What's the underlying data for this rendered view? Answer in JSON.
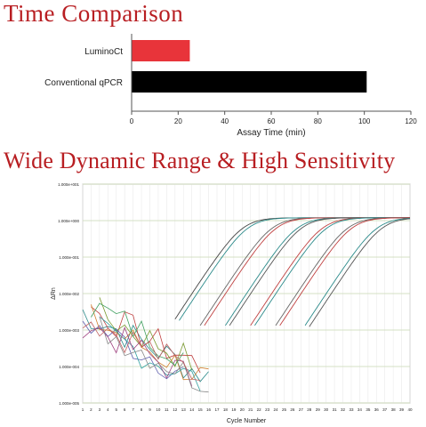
{
  "headings": {
    "time_comparison": "Time Comparison",
    "dynamic_range": "Wide Dynamic Range & High Sensitivity"
  },
  "colors": {
    "heading": "#b81e22",
    "luminoct_bar": "#e8343a",
    "qpcr_bar": "#000000"
  },
  "chart_data": [
    {
      "type": "bar",
      "orientation": "horizontal",
      "categories": [
        "LuminoCt",
        "Conventional qPCR"
      ],
      "values": [
        25,
        101
      ],
      "colors": [
        "#e8343a",
        "#000000"
      ],
      "xlabel": "Assay Time (min)",
      "xlim": [
        0,
        120
      ],
      "xticks": [
        0,
        20,
        40,
        60,
        80,
        100,
        120
      ],
      "grid": false
    },
    {
      "type": "line",
      "xlabel": "Cycle Number",
      "ylabel": "ΔRn",
      "yscale": "log",
      "ylim": [
        1e-05,
        10
      ],
      "xlim": [
        1,
        40
      ],
      "yticks": [
        "1.000e+001",
        "1.000e+000",
        "1.000e-001",
        "1.000e-002",
        "1.000e-003",
        "1.000e-004",
        "1.000e-005"
      ],
      "xticks": [
        1,
        2,
        3,
        4,
        5,
        6,
        7,
        8,
        9,
        10,
        11,
        12,
        13,
        14,
        15,
        16,
        17,
        18,
        19,
        20,
        21,
        22,
        23,
        24,
        25,
        26,
        27,
        28,
        29,
        30,
        31,
        32,
        33,
        34,
        35,
        36,
        37,
        38,
        39,
        40
      ],
      "grid": true,
      "plateau": 1.2,
      "baseline_cycles": [
        1,
        16
      ],
      "amplification_curves": [
        {
          "color": "#444444",
          "start_cycle": 12,
          "midpoint_cycle": 20
        },
        {
          "color": "#2a8a8a",
          "start_cycle": 12.5,
          "midpoint_cycle": 20.6
        },
        {
          "color": "#666666",
          "start_cycle": 15,
          "midpoint_cycle": 23.5
        },
        {
          "color": "#c04040",
          "start_cycle": 15.5,
          "midpoint_cycle": 24
        },
        {
          "color": "#2a8a8a",
          "start_cycle": 18,
          "midpoint_cycle": 26.5
        },
        {
          "color": "#555555",
          "start_cycle": 18.5,
          "midpoint_cycle": 27
        },
        {
          "color": "#c04040",
          "start_cycle": 21,
          "midpoint_cycle": 29.5
        },
        {
          "color": "#2a8a8a",
          "start_cycle": 21.5,
          "midpoint_cycle": 30
        },
        {
          "color": "#666666",
          "start_cycle": 24,
          "midpoint_cycle": 32.5
        },
        {
          "color": "#c04040",
          "start_cycle": 24.5,
          "midpoint_cycle": 33
        },
        {
          "color": "#2a8a8a",
          "start_cycle": 27.5,
          "midpoint_cycle": 36
        },
        {
          "color": "#555555",
          "start_cycle": 28,
          "midpoint_cycle": 36.6
        }
      ],
      "baseline_noise_colors": [
        "#2a8a8a",
        "#c04040",
        "#7a9a30",
        "#6060b0",
        "#d08030",
        "#30a0a0",
        "#a04080",
        "#40a060",
        "#888888",
        "#c06060"
      ]
    }
  ]
}
